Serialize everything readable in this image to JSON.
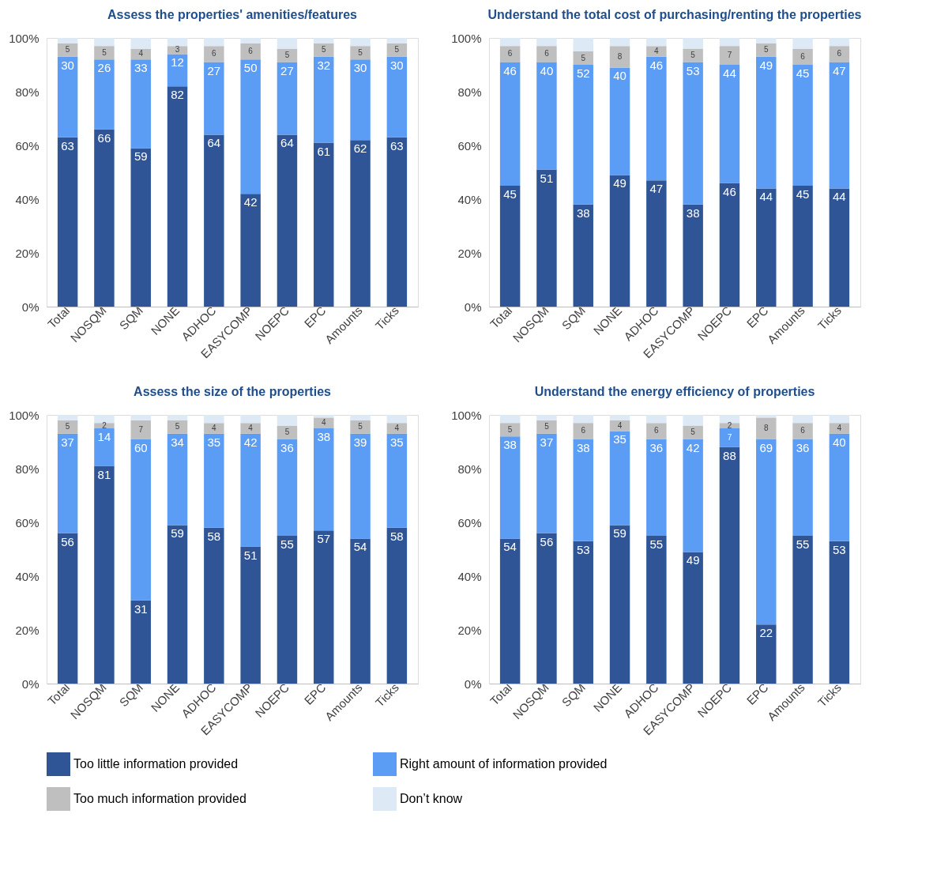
{
  "chart_data": [
    {
      "type": "bar",
      "stacked": true,
      "title": "Assess the properties' amenities/features",
      "categories": [
        "Total",
        "NOSQM",
        "SQM",
        "NONE",
        "ADHOC",
        "EASYCOMP",
        "NOEPC",
        "EPC",
        "Amounts",
        "Ticks"
      ],
      "ylim": [
        0,
        100
      ],
      "yticks": [
        {
          "value": 0,
          "label": "0%"
        },
        {
          "value": 20,
          "label": "20%"
        },
        {
          "value": 40,
          "label": "40%"
        },
        {
          "value": 60,
          "label": "60%"
        },
        {
          "value": 80,
          "label": "80%"
        },
        {
          "value": 100,
          "label": "100%"
        }
      ],
      "grid": false,
      "legend": "bottom",
      "series": [
        {
          "name": "Too little information provided",
          "color": "#2f5597",
          "values": [
            63,
            66,
            59,
            82,
            64,
            42,
            64,
            61,
            62,
            63
          ],
          "value_labels": [
            "63",
            "66",
            "59",
            "82",
            "64",
            "42",
            "64",
            "61",
            "62",
            "63"
          ]
        },
        {
          "name": "Right amount of information provided",
          "color": "#5b9cf5",
          "values": [
            30,
            26,
            33,
            12,
            27,
            50,
            27,
            32,
            30,
            30
          ],
          "value_labels": [
            "30",
            "26",
            "33",
            "12",
            "27",
            "50",
            "27",
            "32",
            "30",
            "30"
          ]
        },
        {
          "name": "Too much information provided",
          "color": "#bfbfbf",
          "values": [
            5,
            5,
            4,
            3,
            6,
            6,
            5,
            5,
            5,
            5
          ],
          "value_labels": [
            "5",
            "5",
            "4",
            "3",
            "6",
            "6",
            "5",
            "5",
            "5",
            "5"
          ]
        },
        {
          "name": "Don’t know",
          "color": "#dde9f5",
          "values": [
            2,
            3,
            4,
            3,
            3,
            2,
            4,
            2,
            3,
            2
          ]
        }
      ]
    },
    {
      "type": "bar",
      "stacked": true,
      "title": "Understand the total cost of purchasing/renting the properties",
      "categories": [
        "Total",
        "NOSQM",
        "SQM",
        "NONE",
        "ADHOC",
        "EASYCOMP",
        "NOEPC",
        "EPC",
        "Amounts",
        "Ticks"
      ],
      "ylim": [
        0,
        100
      ],
      "yticks": [
        {
          "value": 0,
          "label": "0%"
        },
        {
          "value": 20,
          "label": "20%"
        },
        {
          "value": 40,
          "label": "40%"
        },
        {
          "value": 60,
          "label": "60%"
        },
        {
          "value": 80,
          "label": "80%"
        },
        {
          "value": 100,
          "label": "100%"
        }
      ],
      "grid": false,
      "legend": "bottom",
      "series": [
        {
          "name": "Too little information provided",
          "color": "#2f5597",
          "values": [
            45,
            51,
            38,
            49,
            47,
            38,
            46,
            44,
            45,
            44
          ],
          "value_labels": [
            "45",
            "51",
            "38",
            "49",
            "47",
            "38",
            "46",
            "44",
            "45",
            "44"
          ]
        },
        {
          "name": "Right amount of information provided",
          "color": "#5b9cf5",
          "values": [
            46,
            40,
            52,
            40,
            46,
            53,
            44,
            49,
            45,
            47
          ],
          "value_labels": [
            "46",
            "40",
            "52",
            "40",
            "46",
            "53",
            "44",
            "49",
            "45",
            "47"
          ]
        },
        {
          "name": "Too much information provided",
          "color": "#bfbfbf",
          "values": [
            6,
            6,
            5,
            8,
            4,
            5,
            7,
            5,
            6,
            6
          ],
          "value_labels": [
            "6",
            "6",
            "5",
            "8",
            "4",
            "5",
            "7",
            "5",
            "6",
            "6"
          ]
        },
        {
          "name": "Don’t know",
          "color": "#dde9f5",
          "values": [
            3,
            3,
            5,
            3,
            3,
            4,
            3,
            2,
            4,
            3
          ]
        }
      ]
    },
    {
      "type": "bar",
      "stacked": true,
      "title": "Assess the size of the properties",
      "categories": [
        "Total",
        "NOSQM",
        "SQM",
        "NONE",
        "ADHOC",
        "EASYCOMP",
        "NOEPC",
        "EPC",
        "Amounts",
        "Ticks"
      ],
      "ylim": [
        0,
        100
      ],
      "yticks": [
        {
          "value": 0,
          "label": "0%"
        },
        {
          "value": 20,
          "label": "20%"
        },
        {
          "value": 40,
          "label": "40%"
        },
        {
          "value": 60,
          "label": "60%"
        },
        {
          "value": 80,
          "label": "80%"
        },
        {
          "value": 100,
          "label": "100%"
        }
      ],
      "grid": false,
      "legend": "bottom",
      "series": [
        {
          "name": "Too little information provided",
          "color": "#2f5597",
          "values": [
            56,
            81,
            31,
            59,
            58,
            51,
            55,
            57,
            54,
            58
          ],
          "value_labels": [
            "56",
            "81",
            "31",
            "59",
            "58",
            "51",
            "55",
            "57",
            "54",
            "58"
          ]
        },
        {
          "name": "Right amount of information provided",
          "color": "#5b9cf5",
          "values": [
            37,
            14,
            60,
            34,
            35,
            42,
            36,
            38,
            39,
            35
          ],
          "value_labels": [
            "37",
            "14",
            "60",
            "34",
            "35",
            "42",
            "36",
            "38",
            "39",
            "35"
          ]
        },
        {
          "name": "Too much information provided",
          "color": "#bfbfbf",
          "values": [
            5,
            2,
            7,
            5,
            4,
            4,
            5,
            4,
            5,
            4
          ],
          "value_labels": [
            "5",
            "2",
            "7",
            "5",
            "4",
            "4",
            "5",
            "4",
            "5",
            "4"
          ]
        },
        {
          "name": "Don’t know",
          "color": "#dde9f5",
          "values": [
            2,
            3,
            2,
            2,
            3,
            3,
            4,
            1,
            2,
            3
          ]
        }
      ]
    },
    {
      "type": "bar",
      "stacked": true,
      "title": "Understand the energy efficiency of properties",
      "categories": [
        "Total",
        "NOSQM",
        "SQM",
        "NONE",
        "ADHOC",
        "EASYCOMP",
        "NOEPC",
        "EPC",
        "Amounts",
        "Ticks"
      ],
      "ylim": [
        0,
        100
      ],
      "yticks": [
        {
          "value": 0,
          "label": "0%"
        },
        {
          "value": 20,
          "label": "20%"
        },
        {
          "value": 40,
          "label": "40%"
        },
        {
          "value": 60,
          "label": "60%"
        },
        {
          "value": 80,
          "label": "80%"
        },
        {
          "value": 100,
          "label": "100%"
        }
      ],
      "grid": false,
      "legend": "bottom",
      "series": [
        {
          "name": "Too little information provided",
          "color": "#2f5597",
          "values": [
            54,
            56,
            53,
            59,
            55,
            49,
            88,
            22,
            55,
            53
          ],
          "value_labels": [
            "54",
            "56",
            "53",
            "59",
            "55",
            "49",
            "88",
            "22",
            "55",
            "53"
          ]
        },
        {
          "name": "Right amount of information provided",
          "color": "#5b9cf5",
          "values": [
            38,
            37,
            38,
            35,
            36,
            42,
            7,
            69,
            36,
            40
          ],
          "value_labels": [
            "38",
            "37",
            "38",
            "35",
            "36",
            "42",
            "7",
            "69",
            "36",
            "40"
          ]
        },
        {
          "name": "Too much information provided",
          "color": "#bfbfbf",
          "values": [
            5,
            5,
            6,
            4,
            6,
            5,
            2,
            8,
            6,
            4
          ],
          "value_labels": [
            "5",
            "5",
            "6",
            "4",
            "6",
            "5",
            "2",
            "8",
            "6",
            "4"
          ]
        },
        {
          "name": "Don’t know",
          "color": "#dde9f5",
          "values": [
            3,
            2,
            3,
            2,
            3,
            4,
            3,
            1,
            3,
            3
          ]
        }
      ]
    }
  ]
}
